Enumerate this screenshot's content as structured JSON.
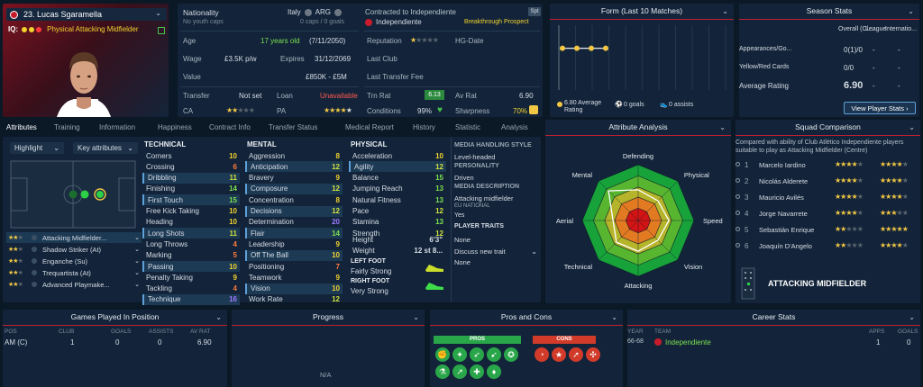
{
  "player": {
    "number_name": "23. Lucas Sgaramella",
    "iq_label": "IQ:",
    "role": "Physical Attacking Midfielder"
  },
  "info": {
    "nationality_label": "Nationality",
    "nat1": "Italy",
    "nat2": "ARG",
    "caps": "No youth caps",
    "caps2": "0 caps / 0 goals",
    "contracted_label": "Contracted to Independiente",
    "club": "Independiente",
    "prospect": "Breakthrough Prospect",
    "spt": "Spt",
    "age_label": "Age",
    "age_years": "17 years old",
    "age_date": "(7/11/2050)",
    "wage_label": "Wage",
    "wage": "£3.5K p/w",
    "expires_label": "Expires",
    "expires": "31/12/2069",
    "value_label": "Value",
    "value": "£850K - £5M",
    "transfer_label": "Transfer",
    "transfer": "Not set",
    "loan_label": "Loan",
    "loan": "Unavailable",
    "ca_label": "CA",
    "pa_label": "PA",
    "reputation_label": "Reputation",
    "hgdate_label": "HG-Date",
    "lastclub_label": "Last Club",
    "lasttransfer_label": "Last Transfer Fee",
    "trnrat_label": "Trn Rat",
    "trnrat": "6.13",
    "avrat_label": "Av Rat",
    "avrat": "6.90",
    "conditions_label": "Conditions",
    "conditions": "99%",
    "sharpness_label": "Sharpness",
    "sharpness": "70%"
  },
  "form": {
    "title": "Form (Last 10 Matches)",
    "avg": "6.80 Average Rating",
    "goals": "0 goals",
    "assists": "0 assists",
    "ratings": [
      6.8,
      6.8,
      6.8,
      6.8
    ]
  },
  "season": {
    "title": "Season Stats",
    "col1": "Overall (Cl...",
    "col2": "League",
    "col3": "Internatio...",
    "rows": [
      {
        "label": "Appearances/Go...",
        "v1": "0(1)/0",
        "v2": "-",
        "v3": "-"
      },
      {
        "label": "Yellow/Red Cards",
        "v1": "0/0",
        "v2": "-",
        "v3": "-"
      },
      {
        "label": "Average Rating",
        "v1": "6.90",
        "v2": "-",
        "v3": "-"
      }
    ],
    "button": "View Player Stats"
  },
  "tabs": [
    "Attributes",
    "Training",
    "Information",
    "Happiness",
    "Contract Info",
    "Transfer Status",
    "Medical Report",
    "History",
    "Statistic",
    "Analysis"
  ],
  "left": {
    "highlight": "Highlight",
    "key": "Key attributes",
    "roles": [
      {
        "stars": 2,
        "name": "Attacking Midfielder..."
      },
      {
        "stars": 2,
        "name": "Shadow Striker (At)"
      },
      {
        "stars": 2,
        "name": "Enganche (Su)"
      },
      {
        "stars": 2,
        "name": "Trequartista (At)"
      },
      {
        "stars": 2,
        "name": "Advanced Playmake..."
      }
    ]
  },
  "technical": {
    "title": "TECHNICAL",
    "items": [
      [
        "Corners",
        "10",
        false
      ],
      [
        "Crossing",
        "6",
        false
      ],
      [
        "Dribbling",
        "11",
        true
      ],
      [
        "Finishing",
        "14",
        false
      ],
      [
        "First Touch",
        "15",
        true
      ],
      [
        "Free Kick Taking",
        "10",
        false
      ],
      [
        "Heading",
        "10",
        false
      ],
      [
        "Long Shots",
        "11",
        true
      ],
      [
        "Long Throws",
        "4",
        false
      ],
      [
        "Marking",
        "5",
        false
      ],
      [
        "Passing",
        "10",
        true
      ],
      [
        "Penalty Taking",
        "9",
        false
      ],
      [
        "Tackling",
        "4",
        false
      ],
      [
        "Technique",
        "16",
        true
      ]
    ]
  },
  "mental": {
    "title": "MENTAL",
    "items": [
      [
        "Aggression",
        "8",
        false
      ],
      [
        "Anticipation",
        "12",
        true
      ],
      [
        "Bravery",
        "9",
        false
      ],
      [
        "Composure",
        "12",
        true
      ],
      [
        "Concentration",
        "8",
        false
      ],
      [
        "Decisions",
        "12",
        true
      ],
      [
        "Determination",
        "20",
        false
      ],
      [
        "Flair",
        "14",
        true
      ],
      [
        "Leadership",
        "9",
        false
      ],
      [
        "Off The Ball",
        "10",
        true
      ],
      [
        "Positioning",
        "7",
        false
      ],
      [
        "Teamwork",
        "9",
        false
      ],
      [
        "Vision",
        "10",
        true
      ],
      [
        "Work Rate",
        "12",
        false
      ]
    ]
  },
  "physical": {
    "title": "PHYSICAL",
    "items": [
      [
        "Acceleration",
        "10",
        false
      ],
      [
        "Agility",
        "12",
        true
      ],
      [
        "Balance",
        "15",
        false
      ],
      [
        "Jumping Reach",
        "13",
        false
      ],
      [
        "Natural Fitness",
        "13",
        false
      ],
      [
        "Pace",
        "12",
        false
      ],
      [
        "Stamina",
        "13",
        false
      ],
      [
        "Strength",
        "12",
        false
      ]
    ],
    "height_label": "Height",
    "height": "6'3\"",
    "weight_label": "Weight",
    "weight": "12 st 8...",
    "leftfoot_label": "LEFT FOOT",
    "leftfoot": "Fairly Strong",
    "rightfoot_label": "RIGHT FOOT",
    "rightfoot": "Very Strong"
  },
  "media": {
    "style_title": "MEDIA HANDLING STYLE",
    "style": "Level-headed",
    "personality_title": "PERSONALITY",
    "personality": "Driven",
    "desc_title": "MEDIA DESCRIPTION",
    "desc": "Attacking midfielder",
    "eu_title": "EU NATIONAL",
    "eu": "Yes",
    "traits_title": "PLAYER TRAITS",
    "traits": "None",
    "discuss": "Discuss new trait",
    "none2": "None"
  },
  "analysis": {
    "title": "Attribute Analysis",
    "labels": [
      "Defending",
      "Physical",
      "Speed",
      "Vision",
      "Attacking",
      "Technical",
      "Aerial",
      "Mental"
    ],
    "values": [
      0.55,
      0.5,
      0.55,
      0.5,
      0.55,
      0.55,
      0.45,
      0.75
    ]
  },
  "squad": {
    "title": "Squad Comparison",
    "desc": "Compared with ability of Club Atlético Independiente players suitable to play as Attacking Midfielder (Centre)",
    "players": [
      {
        "n": "1",
        "name": "Marcelo Iardino",
        "s1": 4,
        "s2": 4
      },
      {
        "n": "2",
        "name": "Nicolás Alderete",
        "s1": 4,
        "s2": 4
      },
      {
        "n": "3",
        "name": "Mauricio Avilés",
        "s1": 4,
        "s2": 4
      },
      {
        "n": "4",
        "name": "Jorge Navarrete",
        "s1": 4,
        "s2": 3
      },
      {
        "n": "5",
        "name": "Sebastián Enrique",
        "s1": 2,
        "s2": 5
      },
      {
        "n": "6",
        "name": "Joaquín D'Angelo",
        "s1": 2,
        "s2": 4
      }
    ],
    "position": "ATTACKING MIDFIELDER"
  },
  "games": {
    "title": "Games Played In Position",
    "h": [
      "POS",
      "CLUB",
      "GOALS",
      "ASSISTS",
      "AV RAT"
    ],
    "row": [
      "AM (C)",
      "1",
      "0",
      "0",
      "6.90"
    ]
  },
  "progress": {
    "title": "Progress",
    "na": "N/A"
  },
  "pros": {
    "title": "Pros and Cons",
    "pros": "PROS",
    "cons": "CONS"
  },
  "career": {
    "title": "Career Stats",
    "year_h": "YEAR",
    "team_h": "TEAM",
    "apps_h": "APPS",
    "goals_h": "GOALS",
    "year": "66-68",
    "team": "Independiente",
    "apps": "1",
    "goals": "0"
  }
}
